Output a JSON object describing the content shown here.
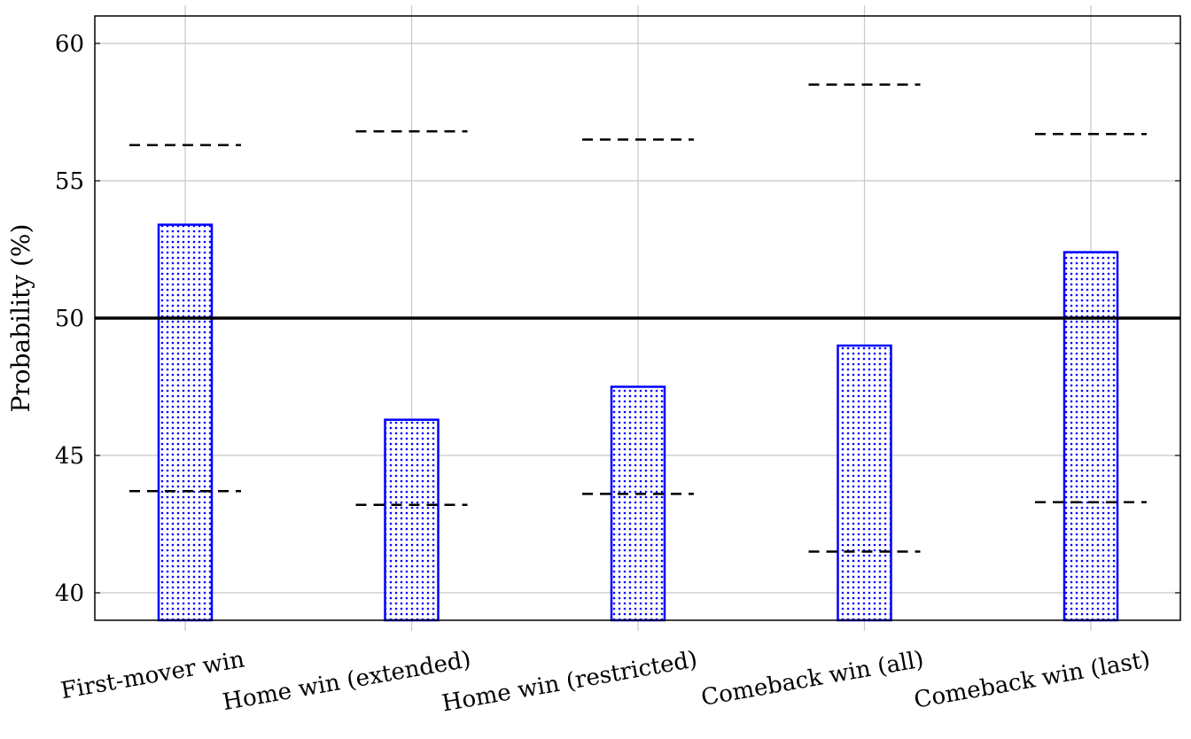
{
  "chart_data": {
    "type": "bar",
    "title": "",
    "xlabel": "",
    "ylabel": "Probability (%)",
    "ylim": [
      39,
      61
    ],
    "yticks": [
      40,
      45,
      50,
      55,
      60
    ],
    "grid": true,
    "categories": [
      "First-mover win",
      "Home win (extended)",
      "Home win (restricted)",
      "Comeback win (all)",
      "Comeback win (last)"
    ],
    "values": [
      53.4,
      46.3,
      47.5,
      49.0,
      52.4
    ],
    "lower_bound": [
      43.7,
      43.2,
      43.6,
      41.5,
      43.3
    ],
    "upper_bound": [
      56.3,
      56.8,
      56.5,
      58.5,
      56.7
    ],
    "reference_line": 50,
    "bar_color": "#0000ff",
    "bar_fill": "dotted"
  }
}
